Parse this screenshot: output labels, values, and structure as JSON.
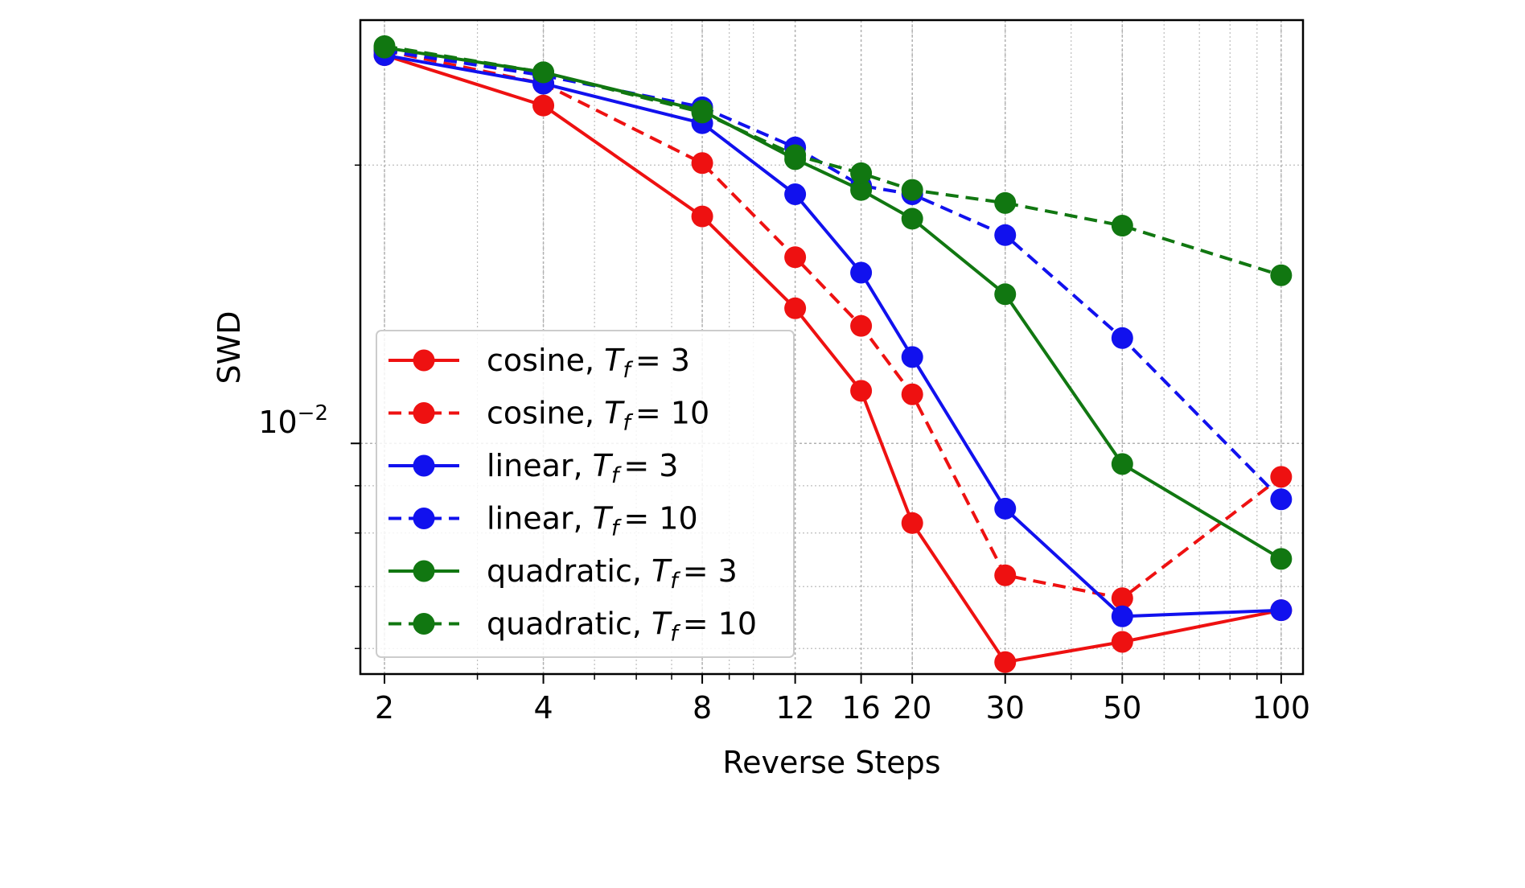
{
  "chart_data": {
    "type": "line",
    "xlabel": "Reverse Steps",
    "ylabel": "SWD",
    "x_scale": "log",
    "y_scale": "log",
    "x_ticks": [
      2,
      4,
      8,
      12,
      16,
      20,
      30,
      50,
      100
    ],
    "x_tick_labels": [
      "2",
      "4",
      "8",
      "12",
      "16",
      "20",
      "30",
      "50",
      "100"
    ],
    "y_major_tick": {
      "value": 0.01,
      "base": "10",
      "exponent": "−2"
    },
    "xlim": [
      1.8,
      110
    ],
    "ylim": [
      0.00563,
      0.0287
    ],
    "grid": true,
    "legend_position": "lower-left",
    "x": [
      2,
      4,
      8,
      12,
      16,
      20,
      30,
      50,
      100
    ],
    "series": [
      {
        "name_prefix": "cosine, ",
        "name_math": "T",
        "name_sub": "f",
        "name_value": "= 3",
        "color": "#ee1111",
        "dash": "solid",
        "values": [
          0.0263,
          0.0232,
          0.0176,
          0.014,
          0.0114,
          0.0082,
          0.0058,
          0.0061,
          0.0066
        ]
      },
      {
        "name_prefix": "cosine, ",
        "name_math": "T",
        "name_sub": "f",
        "name_value": "= 10",
        "color": "#ee1111",
        "dash": "dashed",
        "values": [
          0.0266,
          0.0245,
          0.0201,
          0.0159,
          0.0134,
          0.0113,
          0.0072,
          0.0068,
          0.0092
        ]
      },
      {
        "name_prefix": "linear, ",
        "name_math": "T",
        "name_sub": "f",
        "name_value": "= 3",
        "color": "#1111ee",
        "dash": "solid",
        "values": [
          0.0263,
          0.0245,
          0.0222,
          0.0186,
          0.0153,
          0.0124,
          0.0085,
          0.0065,
          0.0066
        ]
      },
      {
        "name_prefix": "linear, ",
        "name_math": "T",
        "name_sub": "f",
        "name_value": "= 10",
        "color": "#1111ee",
        "dash": "dashed",
        "values": [
          0.0266,
          0.025,
          0.0231,
          0.0209,
          0.019,
          0.0186,
          0.0168,
          0.013,
          0.0087
        ]
      },
      {
        "name_prefix": "quadratic, ",
        "name_math": "T",
        "name_sub": "f",
        "name_value": "= 3",
        "color": "#117711",
        "dash": "solid",
        "values": [
          0.0268,
          0.0252,
          0.0229,
          0.0203,
          0.0188,
          0.0175,
          0.0145,
          0.0095,
          0.0075
        ]
      },
      {
        "name_prefix": "quadratic, ",
        "name_math": "T",
        "name_sub": "f",
        "name_value": "= 10",
        "color": "#117711",
        "dash": "dashed",
        "values": [
          0.0269,
          0.0252,
          0.0228,
          0.0205,
          0.0196,
          0.0188,
          0.0182,
          0.0172,
          0.0152
        ]
      }
    ]
  }
}
